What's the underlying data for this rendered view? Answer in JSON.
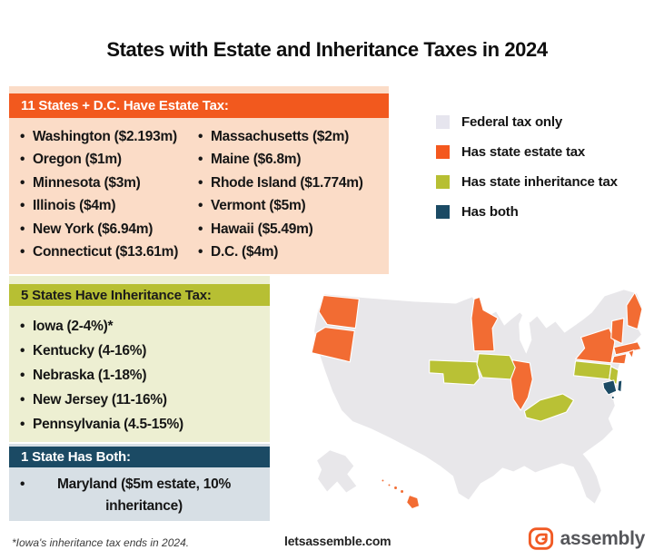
{
  "title": "States with Estate and Inheritance Taxes in 2024",
  "bullet": "•",
  "colors": {
    "estate_band": "#f2591e",
    "estate_panel_bg": "#fbdcc7",
    "inherit_band": "#b7bf33",
    "inherit_panel_bg": "#edefd2",
    "both_band": "#1b4a64",
    "both_panel_bg": "#d7dfe5",
    "map_base": "#e8e7ea",
    "map_estate": "#f26c33",
    "map_inherit": "#b9c135",
    "map_both": "#1b4a64",
    "map_water": "#ffffff",
    "logo_orange": "#f15a24"
  },
  "sections": {
    "estate": {
      "header": "11 States + D.C. Have Estate Tax:",
      "columns": [
        [
          "Washington ($2.193m)",
          "Oregon ($1m)",
          "Minnesota ($3m)",
          "Illinois ($4m)",
          "New York ($6.94m)",
          "Connecticut ($13.61m)"
        ],
        [
          "Massachusetts ($2m)",
          "Maine ($6.8m)",
          "Rhode Island ($1.774m)",
          "Vermont ($5m)",
          "Hawaii ($5.49m)",
          "D.C. ($4m)"
        ]
      ]
    },
    "inheritance": {
      "header": "5 States Have Inheritance Tax:",
      "items": [
        "Iowa (2-4%)*",
        "Kentucky (4-16%)",
        "Nebraska (1-18%)",
        "New Jersey (11-16%)",
        "Pennsylvania (4.5-15%)"
      ]
    },
    "both": {
      "header": "1 State Has Both:",
      "items": [
        "Maryland ($5m estate, 10% inheritance)"
      ]
    }
  },
  "legend": {
    "items": [
      {
        "label": "Federal tax only",
        "color": "#e6e5ee"
      },
      {
        "label": "Has state estate tax",
        "color": "#f4581e"
      },
      {
        "label": "Has state inheritance tax",
        "color": "#b7bf33"
      },
      {
        "label": "Has both",
        "color": "#1b4a64"
      }
    ]
  },
  "chart_data": {
    "type": "heatmap",
    "subtype": "us-choropleth-map",
    "title": "States with Estate and Inheritance Taxes in 2024",
    "legend": [
      "Federal tax only",
      "Has state estate tax",
      "Has state inheritance tax",
      "Has both"
    ],
    "legend_position": "top-right",
    "series": [
      {
        "name": "Has state estate tax",
        "color": "#f26c33",
        "data": [
          {
            "state": "Washington",
            "exemption": "$2.193m"
          },
          {
            "state": "Oregon",
            "exemption": "$1m"
          },
          {
            "state": "Minnesota",
            "exemption": "$3m"
          },
          {
            "state": "Illinois",
            "exemption": "$4m"
          },
          {
            "state": "New York",
            "exemption": "$6.94m"
          },
          {
            "state": "Connecticut",
            "exemption": "$13.61m"
          },
          {
            "state": "Massachusetts",
            "exemption": "$2m"
          },
          {
            "state": "Maine",
            "exemption": "$6.8m"
          },
          {
            "state": "Rhode Island",
            "exemption": "$1.774m"
          },
          {
            "state": "Vermont",
            "exemption": "$5m"
          },
          {
            "state": "Hawaii",
            "exemption": "$5.49m"
          },
          {
            "state": "D.C.",
            "exemption": "$4m"
          }
        ]
      },
      {
        "name": "Has state inheritance tax",
        "color": "#b9c135",
        "data": [
          {
            "state": "Iowa",
            "rate": "2-4%",
            "note": "Iowa's inheritance tax ends in 2024"
          },
          {
            "state": "Kentucky",
            "rate": "4-16%"
          },
          {
            "state": "Nebraska",
            "rate": "1-18%"
          },
          {
            "state": "New Jersey",
            "rate": "11-16%"
          },
          {
            "state": "Pennsylvania",
            "rate": "4.5-15%"
          }
        ]
      },
      {
        "name": "Has both",
        "color": "#1b4a64",
        "data": [
          {
            "state": "Maryland",
            "estate_exemption": "$5m",
            "inheritance_rate": "10%"
          }
        ]
      },
      {
        "name": "Federal tax only",
        "color": "#e6e5ee",
        "data": [
          {
            "state": "All remaining states"
          }
        ]
      }
    ]
  },
  "footnote": "*Iowa's inheritance tax ends in 2024.",
  "footer": {
    "website": "letsassemble.com",
    "brand": "assembly"
  }
}
